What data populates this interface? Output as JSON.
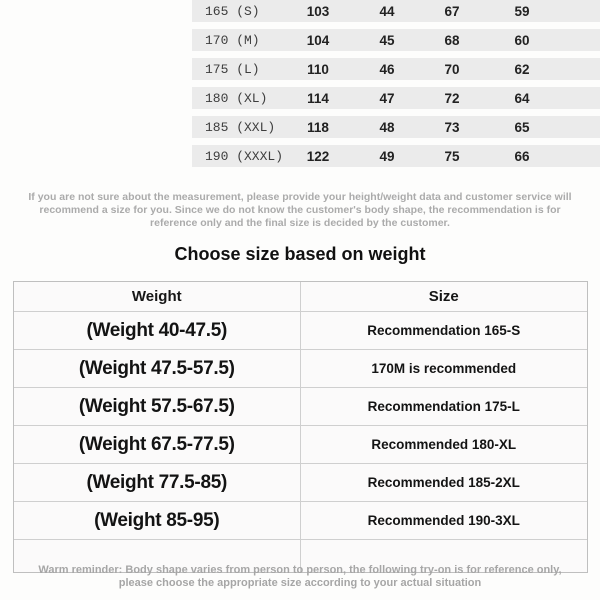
{
  "size_table": {
    "rows": [
      {
        "label": "165 (S)",
        "values": [
          "103",
          "44",
          "67",
          "59"
        ]
      },
      {
        "label": "170 (M)",
        "values": [
          "104",
          "45",
          "68",
          "60"
        ]
      },
      {
        "label": "175 (L)",
        "values": [
          "110",
          "46",
          "70",
          "62"
        ]
      },
      {
        "label": "180 (XL)",
        "values": [
          "114",
          "47",
          "72",
          "64"
        ]
      },
      {
        "label": "185 (XXL)",
        "values": [
          "118",
          "48",
          "73",
          "65"
        ]
      },
      {
        "label": "190 (XXXL)",
        "values": [
          "122",
          "49",
          "75",
          "66"
        ]
      }
    ]
  },
  "disclaimer": {
    "lines": [
      "If you are not sure about the measurement, please provide your height/weight data and customer service will",
      "recommend a size for you. Since we do not know the customer's body shape, the recommendation is for",
      "reference only and the final size is decided by the customer."
    ]
  },
  "heading": "Choose size based on weight",
  "weight_table": {
    "headers": {
      "weight": "Weight",
      "size": "Size"
    },
    "rows": [
      {
        "weight": "(Weight 40-47.5)",
        "size": "Recommendation 165-S"
      },
      {
        "weight": "(Weight 47.5-57.5)",
        "size": "170M is recommended"
      },
      {
        "weight": "(Weight 57.5-67.5)",
        "size": "Recommendation 175-L"
      },
      {
        "weight": "(Weight 67.5-77.5)",
        "size": "Recommended 180-XL"
      },
      {
        "weight": "(Weight 77.5-85)",
        "size": "Recommended 185-2XL"
      },
      {
        "weight": "(Weight 85-95)",
        "size": "Recommended 190-3XL"
      }
    ]
  },
  "footer": {
    "lines": [
      "Warm reminder: Body shape varies from person to person, the following try-on is for reference only,",
      "please choose the appropriate size according to your actual situation"
    ]
  },
  "colors": {
    "stripe": "#ebebeb",
    "table_border": "#bfbfbf",
    "muted_text": "#ababab",
    "text": "#161616"
  }
}
